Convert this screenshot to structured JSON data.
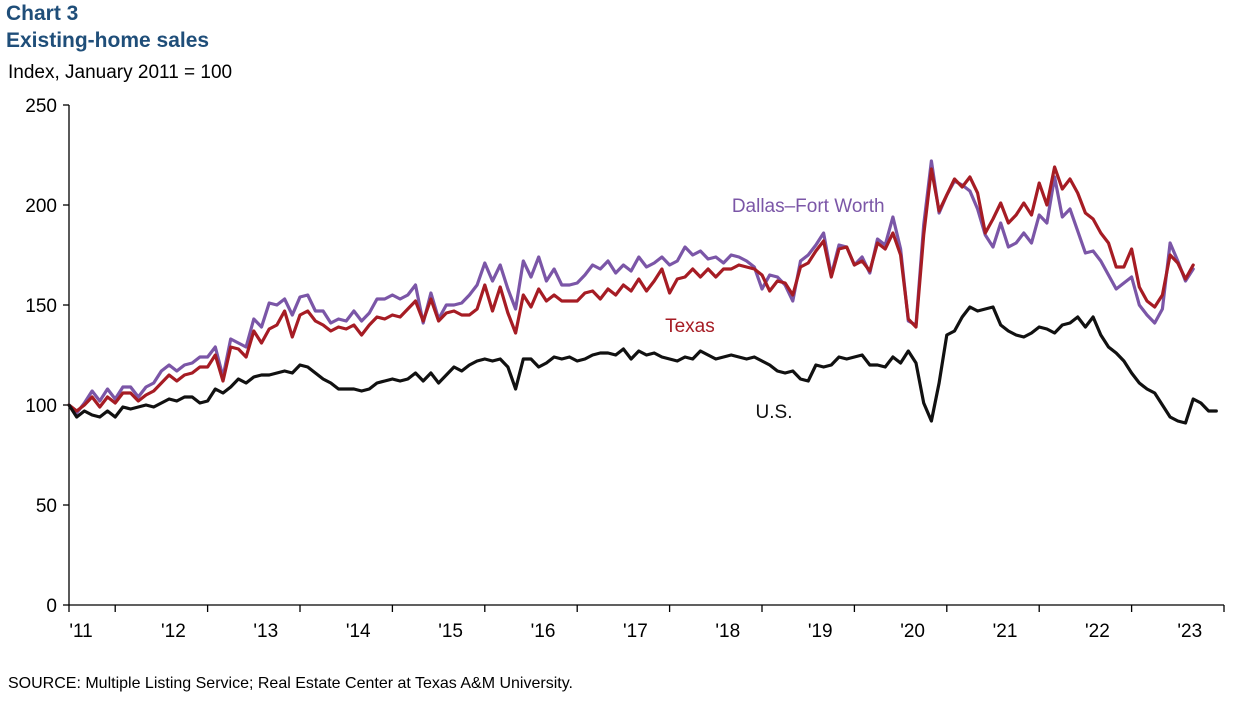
{
  "header": {
    "chart_number": "Chart 3",
    "title": "Existing-home sales",
    "subtitle": "Index, January 2011 = 100"
  },
  "footer": {
    "source": "SOURCE: Multiple Listing Service; Real Estate Center at Texas A&M University."
  },
  "colors": {
    "dfw": "#7b56a7",
    "texas": "#a61c24",
    "us": "#111111",
    "axis": "#000000"
  },
  "chart_data": {
    "type": "line",
    "title": "Existing-home sales",
    "ylabel": "Index, January 2011 = 100",
    "ylim": [
      0,
      250
    ],
    "yticks": [
      0,
      50,
      100,
      150,
      200,
      250
    ],
    "xlim": [
      2011.0,
      2023.5
    ],
    "xticks": [
      {
        "label": "'11",
        "value": 2011
      },
      {
        "label": "'12",
        "value": 2012
      },
      {
        "label": "'13",
        "value": 2013
      },
      {
        "label": "'14",
        "value": 2014
      },
      {
        "label": "'15",
        "value": 2015
      },
      {
        "label": "'16",
        "value": 2016
      },
      {
        "label": "'17",
        "value": 2017
      },
      {
        "label": "'18",
        "value": 2018
      },
      {
        "label": "'19",
        "value": 2019
      },
      {
        "label": "'20",
        "value": 2020
      },
      {
        "label": "'21",
        "value": 2021
      },
      {
        "label": "'22",
        "value": 2022
      },
      {
        "label": "'23",
        "value": 2023
      }
    ],
    "grid": false,
    "legend": "none",
    "series": [
      {
        "name": "Dallas–Fort Worth",
        "color_key": "dfw",
        "label_at": [
          2019.0,
          200
        ],
        "start": "2011-01",
        "values": [
          100,
          96,
          101,
          107,
          102,
          108,
          103,
          109,
          109,
          104,
          109,
          111,
          117,
          120,
          117,
          120,
          121,
          124,
          124,
          129,
          114,
          133,
          131,
          129,
          143,
          139,
          151,
          150,
          153,
          145,
          154,
          155,
          147,
          147,
          141,
          143,
          142,
          147,
          142,
          146,
          153,
          153,
          155,
          153,
          155,
          160,
          141,
          156,
          143,
          150,
          150,
          151,
          155,
          160,
          171,
          162,
          170,
          158,
          148,
          172,
          164,
          174,
          162,
          168,
          160,
          160,
          161,
          165,
          170,
          168,
          172,
          166,
          170,
          167,
          174,
          169,
          171,
          174,
          170,
          172,
          179,
          175,
          177,
          173,
          174,
          171,
          175,
          174,
          172,
          169,
          158,
          165,
          164,
          160,
          152,
          172,
          175,
          180,
          186,
          165,
          180,
          179,
          170,
          174,
          166,
          183,
          180,
          194,
          178,
          142,
          140,
          190,
          222,
          196,
          205,
          212,
          210,
          207,
          198,
          185,
          179,
          191,
          179,
          181,
          186,
          181,
          195,
          191,
          214,
          194,
          198,
          187,
          176,
          177,
          172,
          165,
          158,
          161,
          164,
          150,
          145,
          141,
          148,
          181,
          172,
          162,
          168
        ]
      },
      {
        "name": "Texas",
        "color_key": "texas",
        "label_at": [
          2017.72,
          140
        ],
        "start": "2011-01",
        "values": [
          100,
          97,
          100,
          104,
          99,
          104,
          101,
          106,
          106,
          102,
          105,
          107,
          111,
          115,
          112,
          115,
          116,
          119,
          119,
          125,
          112,
          129,
          128,
          124,
          137,
          131,
          138,
          140,
          147,
          134,
          145,
          147,
          142,
          140,
          137,
          139,
          138,
          140,
          135,
          140,
          144,
          143,
          145,
          144,
          148,
          152,
          142,
          153,
          142,
          146,
          147,
          145,
          145,
          148,
          160,
          147,
          159,
          146,
          136,
          155,
          149,
          158,
          152,
          155,
          152,
          152,
          152,
          156,
          157,
          153,
          158,
          155,
          160,
          157,
          163,
          157,
          162,
          168,
          156,
          163,
          164,
          168,
          164,
          168,
          164,
          168,
          168,
          170,
          169,
          168,
          165,
          157,
          162,
          161,
          155,
          169,
          171,
          177,
          182,
          164,
          178,
          179,
          170,
          172,
          167,
          181,
          178,
          186,
          175,
          143,
          139,
          185,
          218,
          197,
          205,
          213,
          209,
          214,
          206,
          186,
          193,
          201,
          191,
          195,
          201,
          195,
          211,
          200,
          219,
          208,
          213,
          206,
          196,
          193,
          186,
          181,
          169,
          169,
          178,
          159,
          152,
          149,
          155,
          175,
          171,
          163,
          170
        ]
      },
      {
        "name": "U.S.",
        "color_key": "us",
        "label_at": [
          2018.63,
          97
        ],
        "start": "2011-01",
        "values": [
          100,
          94,
          97,
          95,
          94,
          97,
          94,
          99,
          98,
          99,
          100,
          99,
          101,
          103,
          102,
          104,
          104,
          101,
          102,
          108,
          106,
          109,
          113,
          111,
          114,
          115,
          115,
          116,
          117,
          116,
          120,
          119,
          116,
          113,
          111,
          108,
          108,
          108,
          107,
          108,
          111,
          112,
          113,
          112,
          113,
          116,
          112,
          116,
          111,
          115,
          119,
          117,
          120,
          122,
          123,
          122,
          123,
          119,
          108,
          123,
          123,
          119,
          121,
          124,
          123,
          124,
          122,
          123,
          125,
          126,
          126,
          125,
          128,
          123,
          127,
          125,
          126,
          124,
          123,
          122,
          124,
          123,
          127,
          125,
          123,
          124,
          125,
          124,
          123,
          124,
          122,
          120,
          117,
          116,
          117,
          113,
          112,
          120,
          119,
          120,
          124,
          123,
          124,
          125,
          120,
          120,
          119,
          124,
          121,
          127,
          121,
          101,
          92,
          111,
          135,
          137,
          144,
          149,
          147,
          148,
          149,
          140,
          137,
          135,
          134,
          136,
          139,
          138,
          136,
          140,
          141,
          144,
          139,
          144,
          135,
          129,
          126,
          122,
          116,
          111,
          108,
          106,
          100,
          94,
          92,
          91,
          103,
          101,
          97,
          97
        ]
      }
    ]
  }
}
